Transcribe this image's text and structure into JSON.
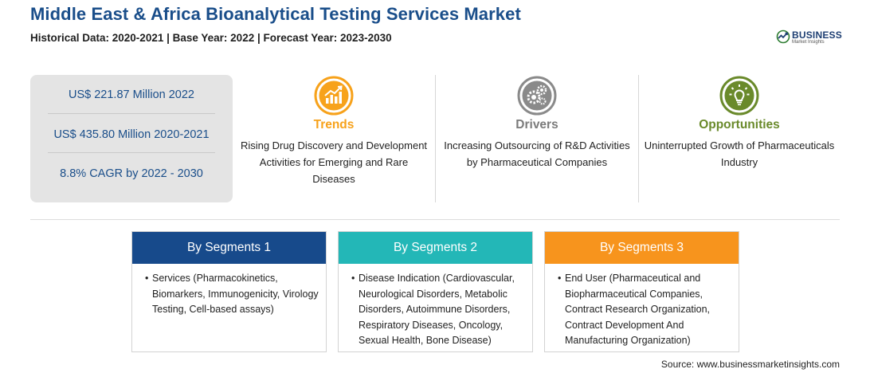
{
  "header": {
    "title": "Middle East & Africa Bioanalytical Testing Services Market",
    "subtitle": "Historical Data: 2020-2021 | Base Year: 2022 | Forecast Year: 2023-2030"
  },
  "logo": {
    "main": "BUSINESS",
    "sub": "Market Insights",
    "icon": "globe-icon"
  },
  "stats": [
    "US$ 221.87 Million 2022",
    "US$ 435.80 Million 2020-2021",
    "8.8% CAGR by 2022 - 2030"
  ],
  "columns": {
    "trends": {
      "heading": "Trends",
      "icon": "rising-chart-icon",
      "color": "#f7a21b",
      "description": "Rising Drug Discovery and Development Activities for Emerging and Rare Diseases"
    },
    "drivers": {
      "heading": "Drivers",
      "icon": "gears-icon",
      "color": "#7b7b7b",
      "description": "Increasing Outsourcing of R&D Activities by Pharmaceutical Companies"
    },
    "opportunities": {
      "heading": "Opportunities",
      "icon": "lightbulb-icon",
      "color": "#6a8a2b",
      "description": "Uninterrupted Growth of Pharmaceuticals Industry"
    }
  },
  "segments": [
    {
      "title": "By Segments 1",
      "color": "#174a8b",
      "bullet": "•",
      "text": "Services (Pharmacokinetics, Biomarkers, Immunogenicity, Virology Testing, Cell-based assays)"
    },
    {
      "title": "By Segments 2",
      "color": "#23b7b7",
      "bullet": "•",
      "text": "Disease Indication (Cardiovascular, Neurological Disorders, Metabolic Disorders, Autoimmune Disorders, Respiratory Diseases, Oncology, Sexual Health, Bone Disease)"
    },
    {
      "title": "By Segments 3",
      "color": "#f7941d",
      "bullet": "•",
      "text": "End User (Pharmaceutical and Biopharmaceutical Companies, Contract Research Organization, Contract Development And Manufacturing Organization)"
    }
  ],
  "source": "Source: www.businessmarketinsights.com"
}
